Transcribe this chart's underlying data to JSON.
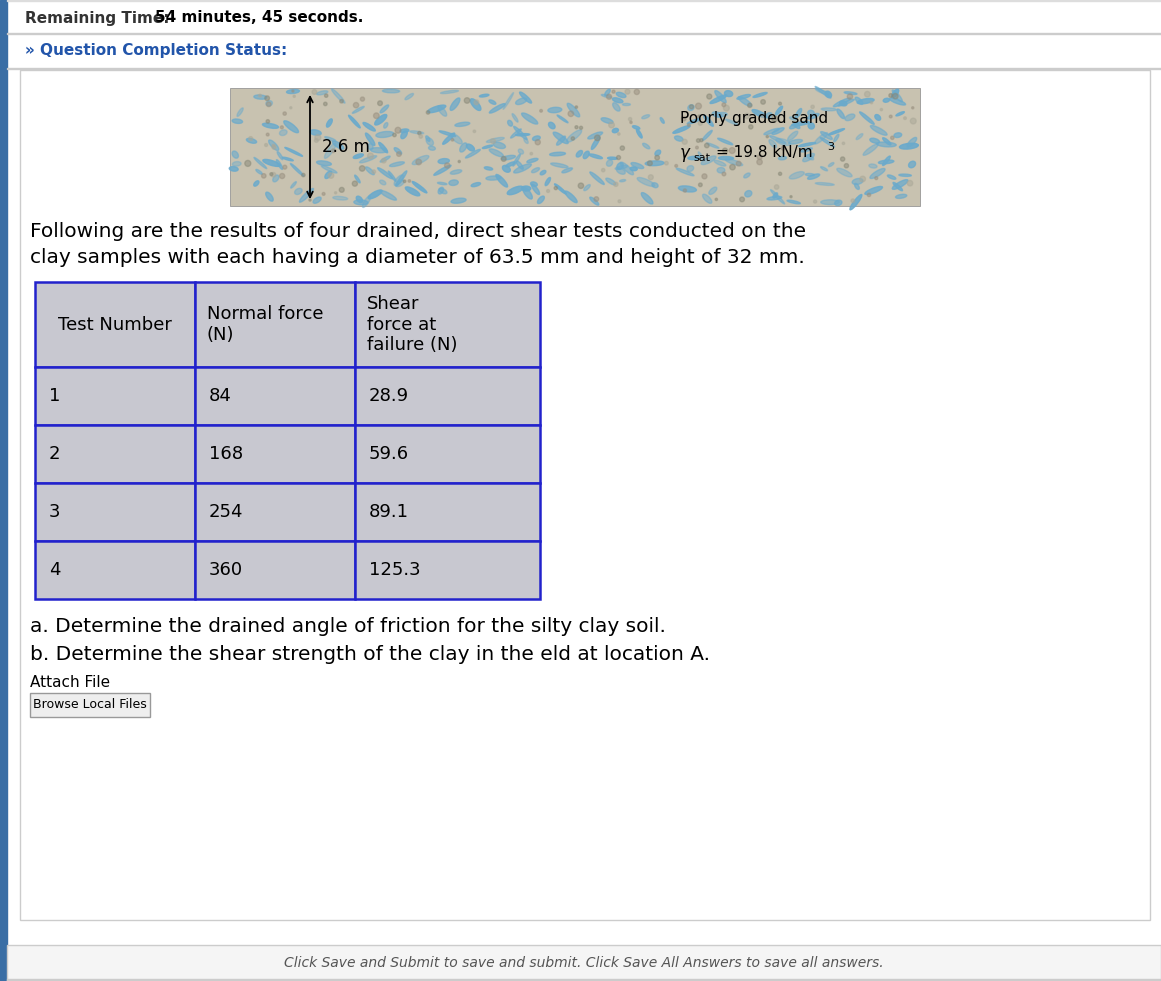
{
  "remaining_time_label": "Remaining Time:",
  "remaining_time_value": "54 minutes, 45 seconds.",
  "question_status_label": "» Question Completion Status:",
  "depth_label": "2.6 m",
  "sand_label": "Poorly graded sand",
  "gamma_line": "γsat = 19.8 kN/m³",
  "paragraph_line1": "Following are the results of four drained, direct shear tests conducted on the",
  "paragraph_line2": "clay samples with each having a diameter of 63.5 mm and height of 32 mm.",
  "table_headers": [
    "Test Number",
    "Normal force\n(N)",
    "Shear\nforce at\nfailure (N)"
  ],
  "table_data": [
    [
      "1",
      "84",
      "28.9"
    ],
    [
      "2",
      "168",
      "59.6"
    ],
    [
      "3",
      "254",
      "89.1"
    ],
    [
      "4",
      "360",
      "125.3"
    ]
  ],
  "question_a": "a. Determine the drained angle of friction for the silty clay soil.",
  "question_b": "b. Determine the shear strength of the clay in the eld at location A.",
  "attach_file": "Attach File",
  "browse_button": "Browse Local Files",
  "footer": "Click Save and Submit to save and submit. Click Save All Answers to save all answers.",
  "bg_color": "#ffffff",
  "header_cell_bg": "#c8c8d0",
  "data_cell_bg": "#c8c8d0",
  "table_border_color": "#2222cc",
  "side_bar_color": "#3a6ea5",
  "sand_bg_color": "#c8c2b0",
  "sand_mark_color": "#6aaacc"
}
